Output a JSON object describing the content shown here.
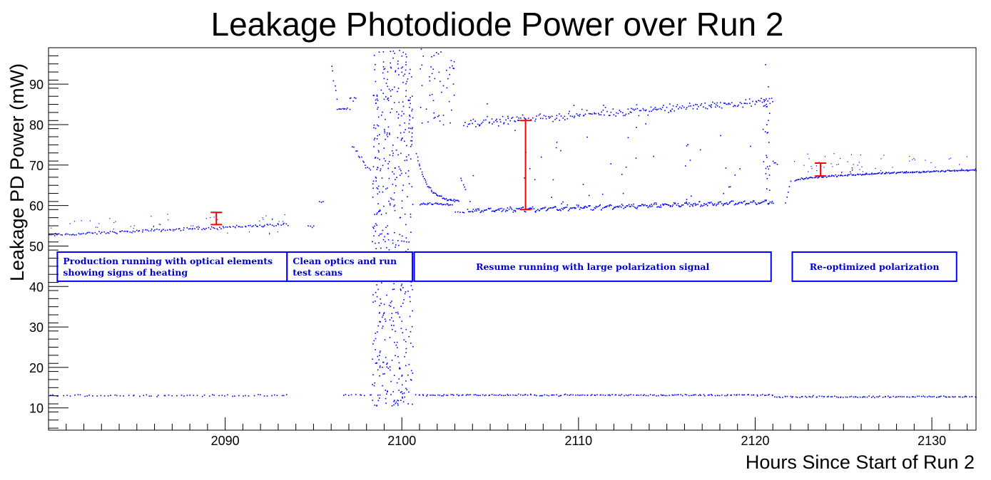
{
  "chart_data": {
    "type": "scatter",
    "title": "Leakage Photodiode Power over Run 2",
    "xlabel": "Hours Since Start of Run 2",
    "ylabel": "Leakage PD Power (mW)",
    "xlim": [
      2080,
      2132.5
    ],
    "ylim": [
      4.5,
      99
    ],
    "xticks": [
      2090,
      2100,
      2110,
      2120,
      2130
    ],
    "yticks": [
      10,
      20,
      30,
      40,
      50,
      60,
      70,
      80,
      90
    ],
    "colors": {
      "data": "#0000ff",
      "error_bars": "#ff0000",
      "annotation": "#0000ff"
    },
    "series": [
      {
        "color": "#0000ff",
        "segments": [
          {
            "x": [
              2080,
              2093.5
            ],
            "y": [
              52.8,
              55.5
            ],
            "spread": 0.5,
            "density": 140,
            "scatter_above": [
              53,
              58
            ]
          },
          {
            "x": [
              2080,
              2093.5
            ],
            "y": [
              13.2,
              13.2
            ],
            "spread": 0.3,
            "density": 70
          },
          {
            "x": [
              2094.7,
              2095.0
            ],
            "y": [
              55.0,
              55.0
            ],
            "spread": 0.5,
            "density": 4
          },
          {
            "x": [
              2095.3,
              2095.5
            ],
            "y": [
              61.0,
              61.0
            ],
            "spread": 0.6,
            "density": 3
          },
          {
            "x": [
              2096.0,
              2096.3
            ],
            "y": [
              95.0,
              86.0
            ],
            "spread": 2.0,
            "density": 6
          },
          {
            "x": [
              2096.3,
              2097.0
            ],
            "y": [
              84.0,
              84.0
            ],
            "spread": 0.4,
            "density": 10
          },
          {
            "x": [
              2097.0,
              2097.4
            ],
            "y": [
              86.5,
              86.5
            ],
            "spread": 0.8,
            "density": 5
          },
          {
            "x": [
              2097.2,
              2097.9
            ],
            "y": [
              75.0,
              70.0
            ],
            "spread": 1.0,
            "density": 10
          },
          {
            "x": [
              2097.9,
              2098.2
            ],
            "y": [
              70.0,
              69.0
            ],
            "spread": 0.4,
            "density": 4
          },
          {
            "x": [
              2096.6,
              2098.3
            ],
            "y": [
              13.3,
              13.3
            ],
            "spread": 0.3,
            "density": 10
          },
          {
            "x": [
              2098.3,
              2100.6
            ],
            "y": [
              10.5,
              98.5
            ],
            "uniform": true,
            "density": 520
          },
          {
            "x": [
              2100.8,
              2103.2
            ],
            "y": [
              73.0,
              61.0
            ],
            "curve": "decay",
            "spread": 0.5,
            "density": 50
          },
          {
            "x": [
              2101.0,
              2102.8
            ],
            "y": [
              60.5,
              60.5
            ],
            "spread": 0.5,
            "density": 30
          },
          {
            "x": [
              2103.3,
              2103.6
            ],
            "y": [
              66.5,
              64.0
            ],
            "spread": 0.6,
            "density": 5
          },
          {
            "x": [
              2103.0,
              2103.5
            ],
            "y": [
              58.5,
              58.5
            ],
            "spread": 0.5,
            "density": 5
          },
          {
            "x": [
              2103.7,
              2121.0
            ],
            "y": [
              58.8,
              61.0
            ],
            "spread": 0.6,
            "density": 320,
            "sawtooth": true
          },
          {
            "x": [
              2103.5,
              2121.0
            ],
            "y": [
              80.5,
              86.0
            ],
            "spread": 1.5,
            "density": 230
          },
          {
            "x": [
              2103.5,
              2121.0
            ],
            "y": [
              60,
              86
            ],
            "uniform": true,
            "density": 60
          },
          {
            "x": [
              2101.0,
              2103.0
            ],
            "y": [
              80,
              99
            ],
            "uniform": true,
            "density": 50
          },
          {
            "x": [
              2120.4,
              2120.8
            ],
            "y": [
              60,
              95
            ],
            "uniform": true,
            "density": 25
          },
          {
            "x": [
              2121.0,
              2121.2
            ],
            "y": [
              71.0,
              70.5
            ],
            "spread": 0.4,
            "density": 4
          },
          {
            "x": [
              2100.8,
              2121.0
            ],
            "y": [
              13.3,
              13.3
            ],
            "spread": 0.3,
            "density": 190
          },
          {
            "x": [
              2121.7,
              2122.0
            ],
            "y": [
              60.5,
              66.0
            ],
            "spread": 0.8,
            "density": 5
          },
          {
            "x": [
              2122.2,
              2132.5
            ],
            "y": [
              66.2,
              68.9
            ],
            "curve": "sqrt",
            "spread": 0.3,
            "density": 170,
            "scatter_above": [
              68,
              73
            ]
          },
          {
            "x": [
              2121.1,
              2132.5
            ],
            "y": [
              12.9,
              12.9
            ],
            "spread": 0.3,
            "density": 110
          }
        ]
      }
    ],
    "error_bars": [
      {
        "x": 2089.5,
        "low": 55.3,
        "high": 58.3
      },
      {
        "x": 2107.0,
        "low": 59.0,
        "high": 81.0
      },
      {
        "x": 2123.7,
        "low": 67.3,
        "high": 70.5
      }
    ],
    "annotations": [
      {
        "x_range": [
          2080.5,
          2093.5
        ],
        "y_range": [
          41.3,
          48.5
        ],
        "align": "left",
        "lines": [
          "Production running with optical elements",
          "showing signs of heating"
        ]
      },
      {
        "x_range": [
          2093.5,
          2100.6
        ],
        "y_range": [
          41.3,
          48.5
        ],
        "align": "left",
        "lines": [
          "Clean optics and run",
          "test scans"
        ]
      },
      {
        "x_range": [
          2100.7,
          2120.9
        ],
        "y_range": [
          41.3,
          48.5
        ],
        "align": "center",
        "lines": [
          "Resume running with large polarization signal"
        ]
      },
      {
        "x_range": [
          2122.1,
          2131.4
        ],
        "y_range": [
          41.3,
          48.5
        ],
        "align": "center",
        "lines": [
          "Re-optimized polarization"
        ]
      }
    ]
  }
}
